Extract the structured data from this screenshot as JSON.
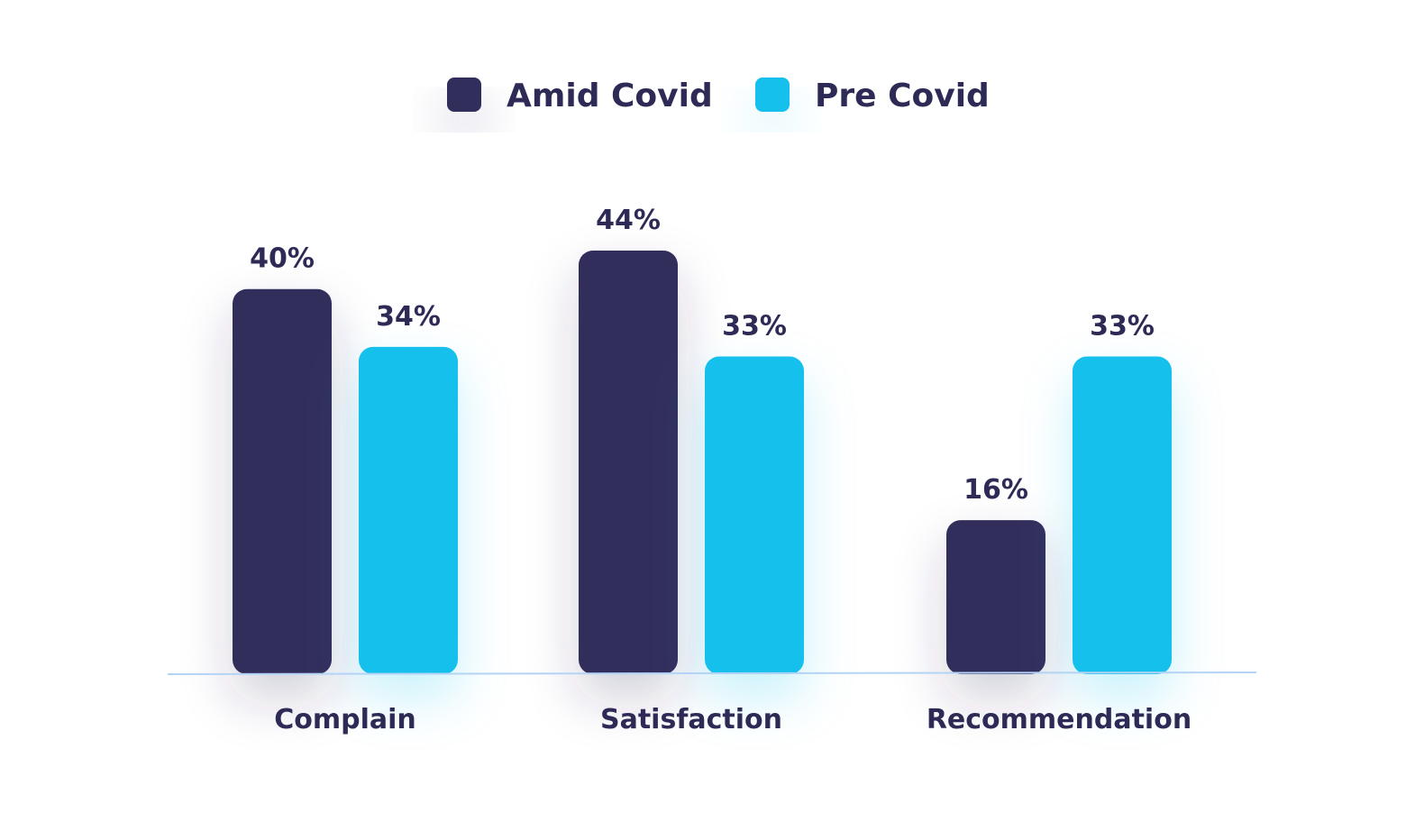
{
  "chart_data": {
    "type": "bar",
    "categories": [
      "Complain",
      "Satisfaction",
      "Recommendation"
    ],
    "series": [
      {
        "name": "Amid Covid",
        "color": "#332e5c",
        "values": [
          40,
          44,
          16
        ]
      },
      {
        "name": "Pre Covid",
        "color": "#12c0ec",
        "values": [
          34,
          33,
          33
        ]
      }
    ],
    "value_labels": [
      [
        "40%",
        "44%",
        "16%"
      ],
      [
        "34%",
        "33%",
        "33%"
      ]
    ],
    "ylim": [
      0,
      44
    ],
    "grid": false,
    "legend_position": "top-center",
    "baseline_color": "#b4d4f6",
    "text_color": "#2d2a55"
  }
}
